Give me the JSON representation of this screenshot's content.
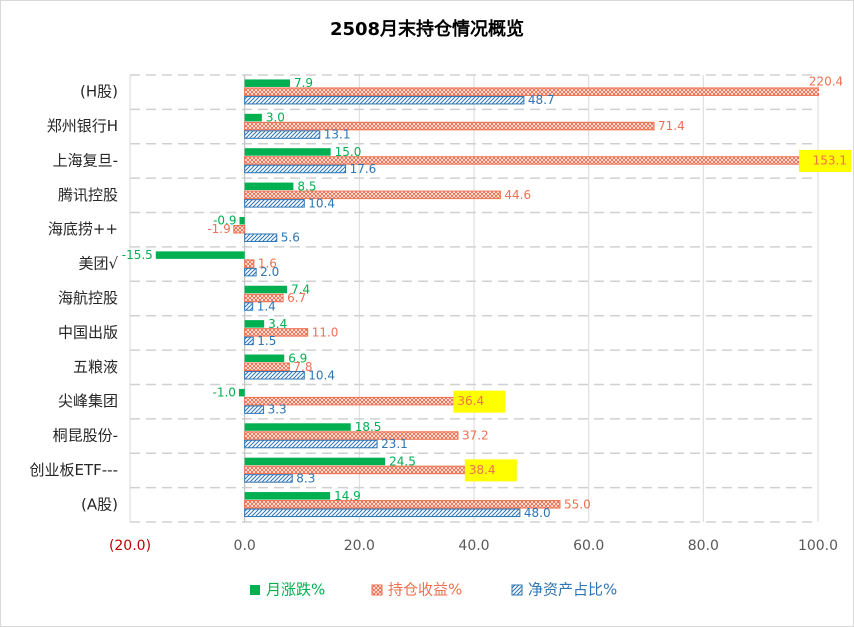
{
  "chart_data": {
    "type": "hbar",
    "title": "2508月末持仓情况概览",
    "categories": [
      "(H股)",
      "郑州银行H",
      "上海复旦-",
      "腾讯控股",
      "海底捞++",
      "美团√",
      "海航控股",
      "中国出版",
      "五粮液",
      "尖峰集团",
      "桐昆股份-",
      "创业板ETF---",
      "(A股)"
    ],
    "series": [
      {
        "name": "月涨跌%",
        "color": "#00b050",
        "pattern": "solid",
        "values": [
          7.9,
          3.0,
          15.0,
          8.5,
          -0.9,
          -15.5,
          7.4,
          3.4,
          6.9,
          -1.0,
          18.5,
          24.5,
          14.9
        ],
        "value_labels": [
          "7.9",
          "3.0",
          "15.0",
          "8.5",
          "-0.9",
          "-15.5",
          "7.4",
          "3.4",
          "6.9",
          "-1.0",
          "18.5",
          "24.5",
          "14.9"
        ]
      },
      {
        "name": "持仓收益%",
        "color": "#f07050",
        "pattern": "crosshatch",
        "values": [
          220.4,
          71.4,
          153.1,
          44.6,
          -1.9,
          1.6,
          6.7,
          11.0,
          7.8,
          36.4,
          37.2,
          38.4,
          55.0
        ],
        "value_labels": [
          "220.4",
          "71.4",
          "153.1",
          "44.6",
          "-1.9",
          "1.6",
          "6.7",
          "11.0",
          "7.8",
          "36.4",
          "37.2",
          "38.4",
          "55.0"
        ],
        "label_highlight": [
          false,
          false,
          true,
          false,
          false,
          false,
          false,
          false,
          false,
          true,
          false,
          true,
          false
        ]
      },
      {
        "name": "净资产占比%",
        "color": "#2e75b6",
        "pattern": "diagonal",
        "values": [
          48.7,
          13.1,
          17.6,
          10.4,
          5.6,
          2.0,
          1.4,
          1.5,
          10.4,
          3.3,
          23.1,
          8.3,
          48.0
        ],
        "value_labels": [
          "48.7",
          "13.1",
          "17.6",
          "10.4",
          "5.6",
          "2.0",
          "1.4",
          "1.5",
          "10.4",
          "3.3",
          "23.1",
          "8.3",
          "48.0"
        ]
      }
    ],
    "xlim": [
      -20,
      100
    ],
    "xticks": [
      {
        "value": -20,
        "label": "(20.0)"
      },
      {
        "value": 0,
        "label": "0.0"
      },
      {
        "value": 20,
        "label": "20.0"
      },
      {
        "value": 40,
        "label": "40.0"
      },
      {
        "value": 60,
        "label": "60.0"
      },
      {
        "value": 80,
        "label": "80.0"
      },
      {
        "value": 100,
        "label": "100.0"
      }
    ],
    "negative_tick_color": "#c00000",
    "grid": true,
    "legend": "bottom"
  }
}
